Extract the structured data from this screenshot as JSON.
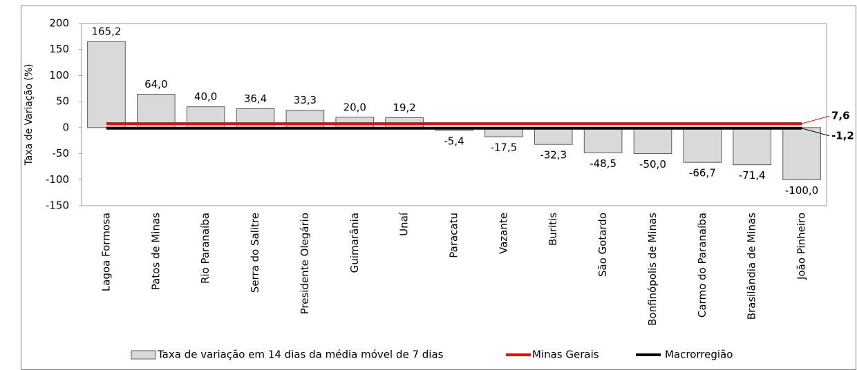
{
  "chart_data": {
    "type": "bar",
    "y_label": "Taxa de Variação (%)",
    "categories": [
      "Lagoa Formosa",
      "Patos de Minas",
      "Rio Paranaíba",
      "Serra do Salitre",
      "Presidente Olegário",
      "Guimarânia",
      "Unaí",
      "Paracatu",
      "Vazante",
      "Buritis",
      "São Gotardo",
      "Bonfinópolis de Minas",
      "Carmo do Paranaíba",
      "Brasilândia de Minas",
      "João Pinheiro"
    ],
    "series": [
      {
        "name": "Taxa de variação em 14 dias da média móvel de 7 dias",
        "color": "#d9d9d9",
        "values": [
          165.2,
          64.0,
          40.0,
          36.4,
          33.3,
          20.0,
          19.2,
          -5.4,
          -17.5,
          -32.3,
          -48.5,
          -50.0,
          -66.7,
          -71.4,
          -100.0
        ],
        "value_labels": [
          "165,2",
          "64,0",
          "40,0",
          "36,4",
          "33,3",
          "20,0",
          "19,2",
          "-5,4",
          "-17,5",
          "-32,3",
          "-48,5",
          "-50,0",
          "-66,7",
          "-71,4",
          "-100,0"
        ]
      }
    ],
    "reference_lines": [
      {
        "name": "Minas Gerais",
        "value": 7.6,
        "label": "7,6",
        "color": "#ff0000"
      },
      {
        "name": "Macrorregião",
        "value": -1.2,
        "label": "-1,2",
        "color": "#000000"
      }
    ],
    "ylim": [
      -150,
      200
    ],
    "yticks": [
      -150,
      -100,
      -50,
      0,
      50,
      100,
      150,
      200
    ]
  }
}
